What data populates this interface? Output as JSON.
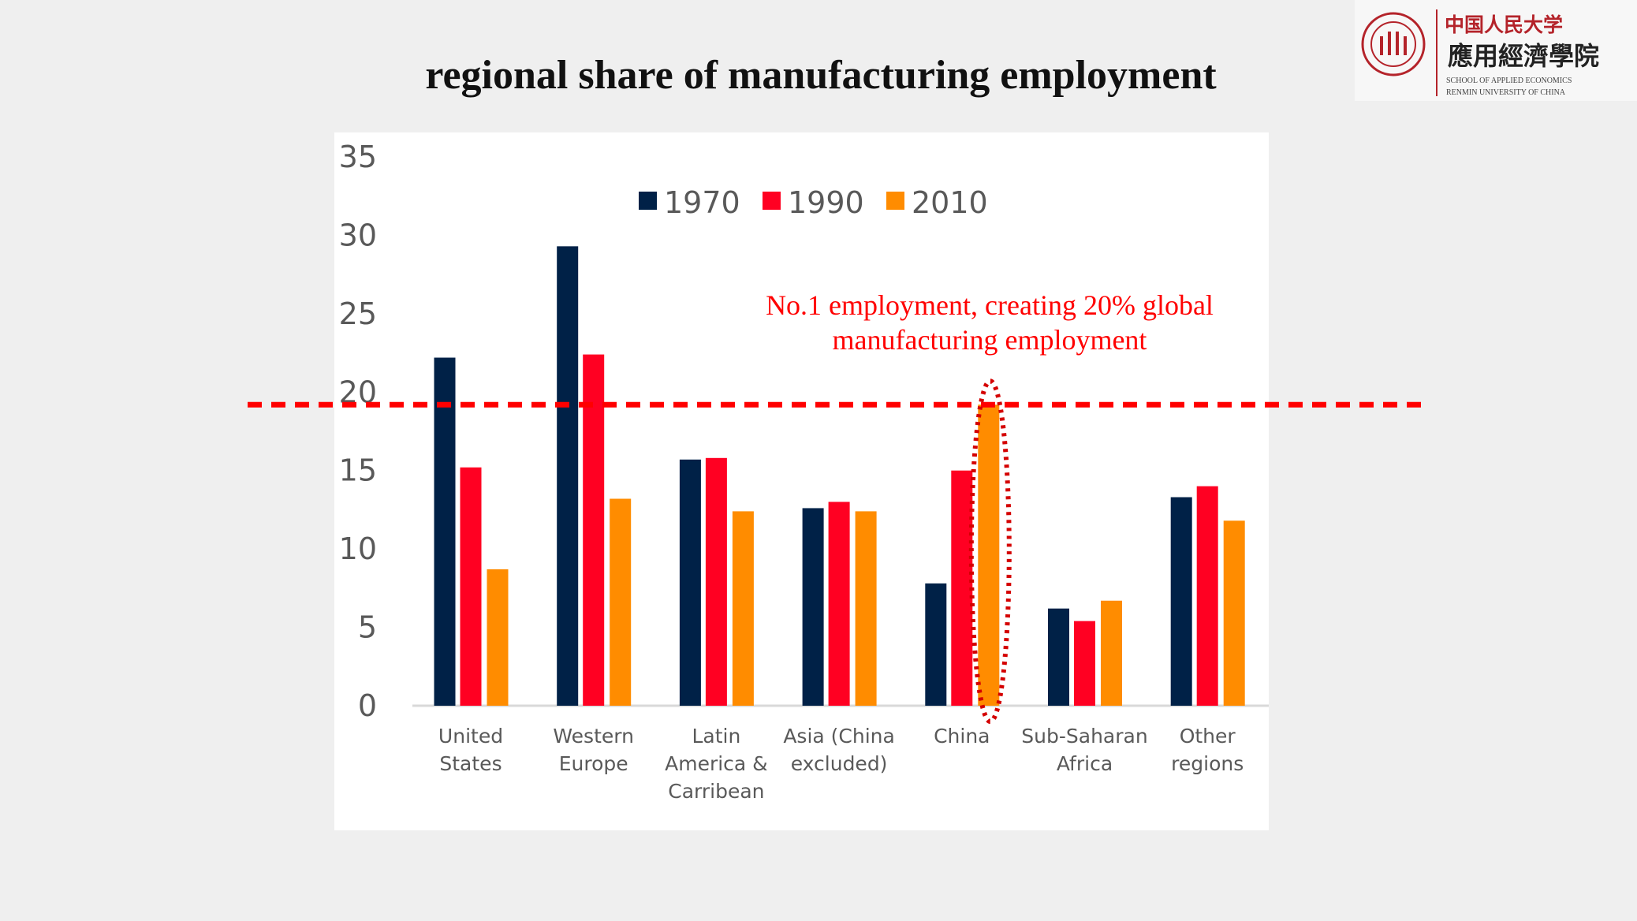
{
  "slide": {
    "title": "regional share of manufacturing employment",
    "annotation": [
      "No.1 employment, creating 20% global",
      "manufacturing employment"
    ],
    "logo": {
      "cn_line1": "中国人民大学",
      "cn_line2": "應用經濟學院",
      "en_line1": "SCHOOL OF APPLIED ECONOMICS",
      "en_line2": "RENMIN UNIVERSITY OF CHINA"
    }
  },
  "chart_data": {
    "type": "bar",
    "title": "regional share of manufacturing employment",
    "xlabel": "",
    "ylabel": "",
    "ylim": [
      0,
      35
    ],
    "yticks": [
      "0",
      "5",
      "10",
      "15",
      "20",
      "25",
      "30",
      "35"
    ],
    "grid": false,
    "legend_placement": "top-center",
    "categories": [
      [
        "United",
        "States"
      ],
      [
        "Western",
        "Europe"
      ],
      [
        "Latin",
        "America &",
        "Carribean"
      ],
      [
        "Asia (China",
        "excluded)"
      ],
      [
        "China"
      ],
      [
        "Sub-Saharan",
        "Africa"
      ],
      [
        "Other",
        "regions"
      ]
    ],
    "series": [
      {
        "name": "1970",
        "color": "#002147",
        "values": [
          22.2,
          29.3,
          15.7,
          12.6,
          7.8,
          6.2,
          13.3
        ]
      },
      {
        "name": "1990",
        "color": "#ff0022",
        "values": [
          15.2,
          22.4,
          15.8,
          13.0,
          15.0,
          5.4,
          14.0
        ]
      },
      {
        "name": "2010",
        "color": "#ff8c00",
        "values": [
          8.7,
          13.2,
          12.4,
          12.4,
          19.2,
          6.7,
          11.8
        ]
      }
    ],
    "reference_line": {
      "value": 19.2,
      "color": "#ff0000",
      "style": "dashed"
    },
    "highlight": {
      "category_index": 4,
      "series": "2010",
      "shape": "dotted-ellipse",
      "color": "#d40000"
    }
  }
}
